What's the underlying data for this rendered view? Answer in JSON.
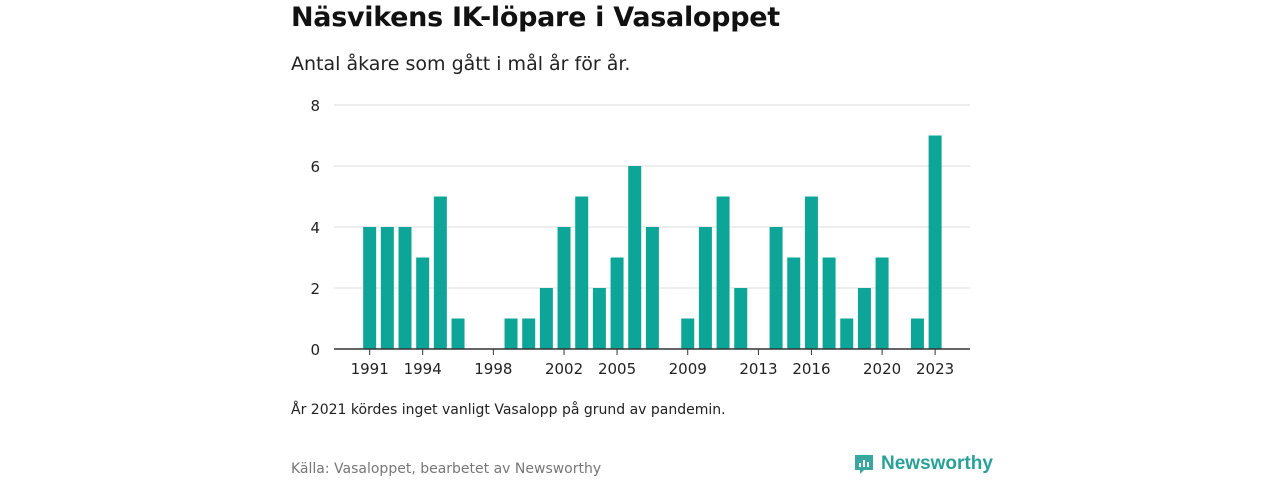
{
  "title": "Näsvikens IK-löpare i Vasaloppet",
  "subtitle": "Antal åkare som gått i mål år för år.",
  "note": "År 2021 kördes inget vanligt Vasalopp på grund av pandemin.",
  "source": "Källa: Vasaloppet, bearbetet av Newsworthy",
  "brand": {
    "name": "Newsworthy",
    "icon": "newsworthy-logo-icon",
    "color": "#3aa6a0"
  },
  "colors": {
    "bar": "#0ca598",
    "grid": "#dddddd",
    "axis": "#333333"
  },
  "chart_data": {
    "type": "bar",
    "title": "Näsvikens IK-löpare i Vasaloppet",
    "subtitle": "Antal åkare som gått i mål år för år.",
    "xlabel": "",
    "ylabel": "",
    "ylim": [
      0,
      8
    ],
    "yticks": [
      0,
      2,
      4,
      6,
      8
    ],
    "grid": true,
    "xtick_labels": [
      "1991",
      "1994",
      "1998",
      "2002",
      "2005",
      "2009",
      "2013",
      "2016",
      "2020",
      "2023"
    ],
    "categories": [
      1990,
      1991,
      1992,
      1993,
      1994,
      1995,
      1996,
      1997,
      1998,
      1999,
      2000,
      2001,
      2002,
      2003,
      2004,
      2005,
      2006,
      2007,
      2008,
      2009,
      2010,
      2011,
      2012,
      2013,
      2014,
      2015,
      2016,
      2017,
      2018,
      2019,
      2020,
      2021,
      2022,
      2023
    ],
    "values": [
      0,
      4,
      4,
      4,
      3,
      5,
      1,
      0,
      0,
      1,
      1,
      2,
      4,
      5,
      2,
      3,
      6,
      4,
      0,
      1,
      4,
      5,
      2,
      0,
      4,
      3,
      5,
      3,
      1,
      2,
      3,
      0,
      1,
      7
    ]
  }
}
